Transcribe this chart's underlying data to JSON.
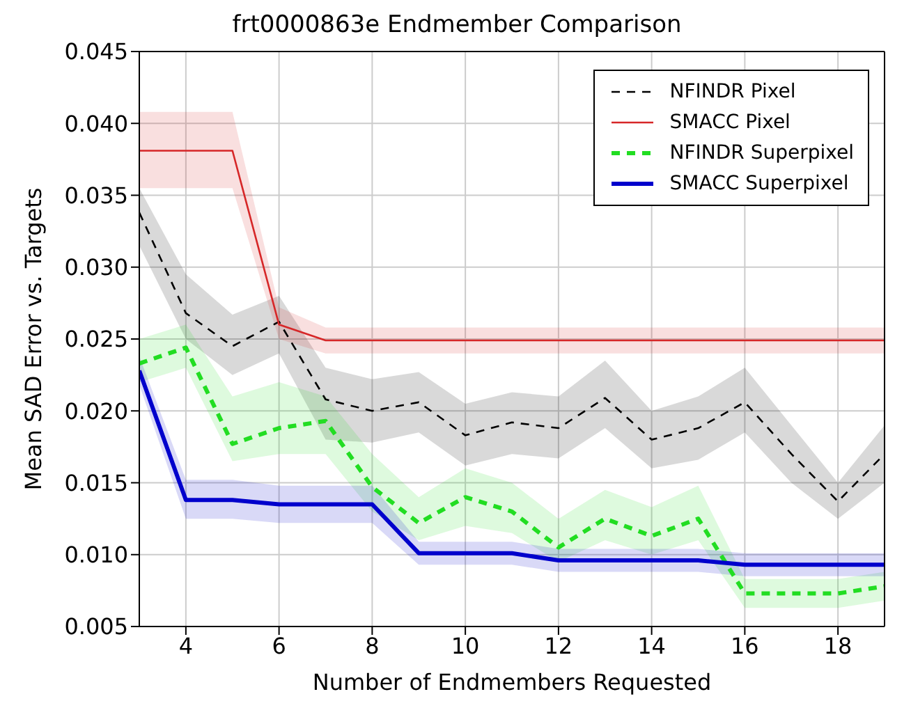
{
  "chart_data": {
    "type": "line",
    "title": "frt0000863e Endmember Comparison",
    "xlabel": "Number of Endmembers Requested",
    "ylabel": "Mean SAD Error vs. Targets",
    "x": [
      3,
      4,
      5,
      6,
      7,
      8,
      9,
      10,
      11,
      12,
      13,
      14,
      15,
      16,
      17,
      18,
      19
    ],
    "series": [
      {
        "name": "NFINDR Pixel",
        "color": "#000000",
        "line_style": "dashed",
        "values": [
          0.0338,
          0.0268,
          0.0245,
          0.0262,
          0.0208,
          0.02,
          0.0206,
          0.0183,
          0.0192,
          0.0188,
          0.0209,
          0.018,
          0.0188,
          0.0206,
          0.017,
          0.0137,
          0.017
        ],
        "lower": [
          0.0315,
          0.025,
          0.0225,
          0.024,
          0.018,
          0.0178,
          0.0185,
          0.0162,
          0.017,
          0.0167,
          0.0188,
          0.016,
          0.0166,
          0.0185,
          0.015,
          0.0125,
          0.015
        ],
        "upper": [
          0.0355,
          0.0295,
          0.0267,
          0.028,
          0.023,
          0.0222,
          0.0227,
          0.0205,
          0.0213,
          0.021,
          0.0235,
          0.02,
          0.021,
          0.023,
          0.019,
          0.015,
          0.019
        ]
      },
      {
        "name": "SMACC Pixel",
        "color": "#d62728",
        "line_style": "solid",
        "values": [
          0.0381,
          0.0381,
          0.0381,
          0.026,
          0.0249,
          0.0249,
          0.0249,
          0.0249,
          0.0249,
          0.0249,
          0.0249,
          0.0249,
          0.0249,
          0.0249,
          0.0249,
          0.0249,
          0.0249
        ],
        "lower": [
          0.0355,
          0.0355,
          0.0355,
          0.025,
          0.024,
          0.024,
          0.024,
          0.024,
          0.024,
          0.024,
          0.024,
          0.024,
          0.024,
          0.024,
          0.024,
          0.024,
          0.024
        ],
        "upper": [
          0.0408,
          0.0408,
          0.0408,
          0.0272,
          0.0258,
          0.0258,
          0.0258,
          0.0258,
          0.0258,
          0.0258,
          0.0258,
          0.0258,
          0.0258,
          0.0258,
          0.0258,
          0.0258,
          0.0258
        ]
      },
      {
        "name": "NFINDR Superpixel",
        "color": "#22dd22",
        "line_style": "dashed",
        "values": [
          0.0233,
          0.0244,
          0.0177,
          0.0188,
          0.0193,
          0.0147,
          0.0122,
          0.014,
          0.013,
          0.0105,
          0.0125,
          0.0113,
          0.0125,
          0.0073,
          0.0073,
          0.0073,
          0.0078
        ],
        "lower": [
          0.022,
          0.023,
          0.0165,
          0.017,
          0.017,
          0.013,
          0.011,
          0.012,
          0.0115,
          0.0095,
          0.011,
          0.01,
          0.011,
          0.0063,
          0.0063,
          0.0063,
          0.0068
        ],
        "upper": [
          0.025,
          0.026,
          0.021,
          0.022,
          0.021,
          0.017,
          0.014,
          0.016,
          0.015,
          0.0125,
          0.0145,
          0.0133,
          0.0148,
          0.0083,
          0.0083,
          0.0083,
          0.0088
        ]
      },
      {
        "name": "SMACC Superpixel",
        "color": "#0000cc",
        "line_style": "solid",
        "values": [
          0.0228,
          0.0138,
          0.0138,
          0.0135,
          0.0135,
          0.0135,
          0.0101,
          0.0101,
          0.0101,
          0.0096,
          0.0096,
          0.0096,
          0.0096,
          0.0093,
          0.0093,
          0.0093,
          0.0093
        ],
        "lower": [
          0.0218,
          0.0125,
          0.0125,
          0.0122,
          0.0122,
          0.0122,
          0.0093,
          0.0093,
          0.0093,
          0.0088,
          0.0088,
          0.0088,
          0.0088,
          0.0085,
          0.0085,
          0.0085,
          0.0085
        ],
        "upper": [
          0.0238,
          0.0152,
          0.0152,
          0.0148,
          0.0148,
          0.0148,
          0.0109,
          0.0109,
          0.0109,
          0.0104,
          0.0104,
          0.0104,
          0.0104,
          0.0101,
          0.0101,
          0.0101,
          0.0101
        ]
      }
    ],
    "xlim": [
      3,
      19
    ],
    "xticks": [
      4,
      6,
      8,
      10,
      12,
      14,
      16,
      18
    ],
    "ylim": [
      0.005,
      0.045
    ],
    "yticks": [
      {
        "value": 0.005,
        "label": "0.005"
      },
      {
        "value": 0.01,
        "label": "0.010"
      },
      {
        "value": 0.015,
        "label": "0.015"
      },
      {
        "value": 0.02,
        "label": "0.020"
      },
      {
        "value": 0.025,
        "label": "0.025"
      },
      {
        "value": 0.03,
        "label": "0.030"
      },
      {
        "value": 0.035,
        "label": "0.035"
      },
      {
        "value": 0.04,
        "label": "0.040"
      },
      {
        "value": 0.045,
        "label": "0.045"
      }
    ],
    "grid": true,
    "legend": "top right",
    "marker": "none"
  }
}
